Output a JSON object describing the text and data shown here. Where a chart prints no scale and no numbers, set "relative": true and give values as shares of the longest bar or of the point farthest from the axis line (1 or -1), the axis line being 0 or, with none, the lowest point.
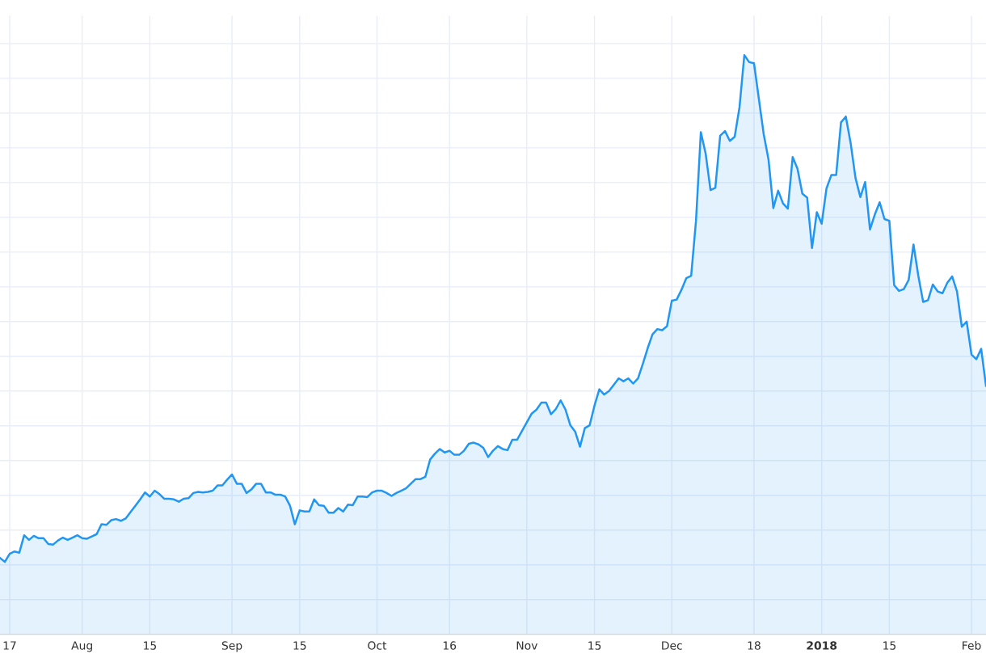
{
  "chart_data": {
    "type": "area",
    "relative": true,
    "grid": true,
    "tick_labels": "x",
    "xlim": [
      "2017-07-15",
      "2018-02-04"
    ],
    "xticks": [
      {
        "value": "2017-07-17",
        "label": "17"
      },
      {
        "value": "2017-08-01",
        "label": "Aug"
      },
      {
        "value": "2017-08-15",
        "label": "15"
      },
      {
        "value": "2017-09-01",
        "label": "Sep"
      },
      {
        "value": "2017-09-15",
        "label": "15"
      },
      {
        "value": "2017-10-01",
        "label": "Oct"
      },
      {
        "value": "2017-10-16",
        "label": "16"
      },
      {
        "value": "2017-11-01",
        "label": "Nov"
      },
      {
        "value": "2017-11-15",
        "label": "15"
      },
      {
        "value": "2017-12-01",
        "label": "Dec"
      },
      {
        "value": "2017-12-18",
        "label": "18"
      },
      {
        "value": "2018-01-01",
        "label": "2018"
      },
      {
        "value": "2018-01-15",
        "label": "15"
      },
      {
        "value": "2018-02-01",
        "label": "Feb"
      }
    ],
    "series": [
      {
        "color": "#2196f3",
        "x": [
          "2017-07-15",
          "2017-07-16",
          "2017-07-17",
          "2017-07-18",
          "2017-07-19",
          "2017-07-20",
          "2017-07-21",
          "2017-07-22",
          "2017-07-23",
          "2017-07-24",
          "2017-07-25",
          "2017-07-26",
          "2017-07-27",
          "2017-07-28",
          "2017-07-29",
          "2017-07-30",
          "2017-07-31",
          "2017-08-01",
          "2017-08-02",
          "2017-08-03",
          "2017-08-04",
          "2017-08-05",
          "2017-08-06",
          "2017-08-07",
          "2017-08-08",
          "2017-08-09",
          "2017-08-10",
          "2017-08-11",
          "2017-08-12",
          "2017-08-13",
          "2017-08-14",
          "2017-08-15",
          "2017-08-16",
          "2017-08-17",
          "2017-08-18",
          "2017-08-19",
          "2017-08-20",
          "2017-08-21",
          "2017-08-22",
          "2017-08-23",
          "2017-08-24",
          "2017-08-25",
          "2017-08-26",
          "2017-08-27",
          "2017-08-28",
          "2017-08-29",
          "2017-08-30",
          "2017-08-31",
          "2017-09-01",
          "2017-09-02",
          "2017-09-03",
          "2017-09-04",
          "2017-09-05",
          "2017-09-06",
          "2017-09-07",
          "2017-09-08",
          "2017-09-09",
          "2017-09-10",
          "2017-09-11",
          "2017-09-12",
          "2017-09-13",
          "2017-09-14",
          "2017-09-15",
          "2017-09-16",
          "2017-09-17",
          "2017-09-18",
          "2017-09-19",
          "2017-09-20",
          "2017-09-21",
          "2017-09-22",
          "2017-09-23",
          "2017-09-24",
          "2017-09-25",
          "2017-09-26",
          "2017-09-27",
          "2017-09-28",
          "2017-09-29",
          "2017-09-30",
          "2017-10-01",
          "2017-10-02",
          "2017-10-03",
          "2017-10-04",
          "2017-10-05",
          "2017-10-06",
          "2017-10-07",
          "2017-10-08",
          "2017-10-09",
          "2017-10-10",
          "2017-10-11",
          "2017-10-12",
          "2017-10-13",
          "2017-10-14",
          "2017-10-15",
          "2017-10-16",
          "2017-10-17",
          "2017-10-18",
          "2017-10-19",
          "2017-10-20",
          "2017-10-21",
          "2017-10-22",
          "2017-10-23",
          "2017-10-24",
          "2017-10-25",
          "2017-10-26",
          "2017-10-27",
          "2017-10-28",
          "2017-10-29",
          "2017-10-30",
          "2017-10-31",
          "2017-11-01",
          "2017-11-02",
          "2017-11-03",
          "2017-11-04",
          "2017-11-05",
          "2017-11-06",
          "2017-11-07",
          "2017-11-08",
          "2017-11-09",
          "2017-11-10",
          "2017-11-11",
          "2017-11-12",
          "2017-11-13",
          "2017-11-14",
          "2017-11-15",
          "2017-11-16",
          "2017-11-17",
          "2017-11-18",
          "2017-11-19",
          "2017-11-20",
          "2017-11-21",
          "2017-11-22",
          "2017-11-23",
          "2017-11-24",
          "2017-11-25",
          "2017-11-26",
          "2017-11-27",
          "2017-11-28",
          "2017-11-29",
          "2017-11-30",
          "2017-12-01",
          "2017-12-02",
          "2017-12-03",
          "2017-12-04",
          "2017-12-05",
          "2017-12-06",
          "2017-12-07",
          "2017-12-08",
          "2017-12-09",
          "2017-12-10",
          "2017-12-11",
          "2017-12-12",
          "2017-12-13",
          "2017-12-14",
          "2017-12-15",
          "2017-12-16",
          "2017-12-17",
          "2017-12-18",
          "2017-12-19",
          "2017-12-20",
          "2017-12-21",
          "2017-12-22",
          "2017-12-23",
          "2017-12-24",
          "2017-12-25",
          "2017-12-26",
          "2017-12-27",
          "2017-12-28",
          "2017-12-29",
          "2017-12-30",
          "2017-12-31",
          "2018-01-01",
          "2018-01-02",
          "2018-01-03",
          "2018-01-04",
          "2018-01-05",
          "2018-01-06",
          "2018-01-07",
          "2018-01-08",
          "2018-01-09",
          "2018-01-10",
          "2018-01-11",
          "2018-01-12",
          "2018-01-13",
          "2018-01-14",
          "2018-01-15",
          "2018-01-16",
          "2018-01-17",
          "2018-01-18",
          "2018-01-19",
          "2018-01-20",
          "2018-01-21",
          "2018-01-22",
          "2018-01-23",
          "2018-01-24",
          "2018-01-25",
          "2018-01-26",
          "2018-01-27",
          "2018-01-28",
          "2018-01-29",
          "2018-01-30",
          "2018-01-31",
          "2018-02-01",
          "2018-02-02",
          "2018-02-03",
          "2018-02-04"
        ],
        "values": [
          0.132,
          0.125,
          0.139,
          0.143,
          0.141,
          0.171,
          0.163,
          0.17,
          0.166,
          0.166,
          0.156,
          0.155,
          0.162,
          0.167,
          0.163,
          0.167,
          0.171,
          0.166,
          0.165,
          0.169,
          0.173,
          0.19,
          0.189,
          0.197,
          0.199,
          0.196,
          0.2,
          0.211,
          0.222,
          0.233,
          0.245,
          0.238,
          0.248,
          0.242,
          0.234,
          0.234,
          0.233,
          0.229,
          0.234,
          0.235,
          0.244,
          0.246,
          0.245,
          0.246,
          0.248,
          0.257,
          0.257,
          0.267,
          0.276,
          0.26,
          0.26,
          0.244,
          0.25,
          0.26,
          0.26,
          0.245,
          0.245,
          0.241,
          0.241,
          0.238,
          0.222,
          0.19,
          0.214,
          0.212,
          0.212,
          0.233,
          0.223,
          0.222,
          0.21,
          0.21,
          0.218,
          0.212,
          0.224,
          0.223,
          0.238,
          0.238,
          0.237,
          0.245,
          0.248,
          0.248,
          0.244,
          0.239,
          0.244,
          0.248,
          0.252,
          0.26,
          0.268,
          0.268,
          0.272,
          0.302,
          0.312,
          0.32,
          0.314,
          0.317,
          0.31,
          0.31,
          0.317,
          0.329,
          0.331,
          0.328,
          0.322,
          0.306,
          0.317,
          0.325,
          0.32,
          0.318,
          0.336,
          0.336,
          0.351,
          0.366,
          0.381,
          0.388,
          0.4,
          0.4,
          0.38,
          0.389,
          0.404,
          0.388,
          0.361,
          0.35,
          0.324,
          0.356,
          0.361,
          0.395,
          0.423,
          0.414,
          0.42,
          0.431,
          0.442,
          0.437,
          0.442,
          0.433,
          0.442,
          0.467,
          0.494,
          0.518,
          0.527,
          0.525,
          0.532,
          0.576,
          0.578,
          0.595,
          0.615,
          0.619,
          0.714,
          0.867,
          0.83,
          0.767,
          0.771,
          0.861,
          0.869,
          0.852,
          0.859,
          0.91,
          1,
          0.988,
          0.986,
          0.925,
          0.864,
          0.82,
          0.736,
          0.766,
          0.744,
          0.735,
          0.824,
          0.804,
          0.761,
          0.754,
          0.667,
          0.729,
          0.709,
          0.77,
          0.793,
          0.793,
          0.884,
          0.894,
          0.848,
          0.788,
          0.755,
          0.781,
          0.699,
          0.725,
          0.746,
          0.717,
          0.714,
          0.603,
          0.593,
          0.596,
          0.612,
          0.673,
          0.619,
          0.574,
          0.577,
          0.604,
          0.592,
          0.589,
          0.607,
          0.618,
          0.592,
          0.531,
          0.54,
          0.483,
          0.475,
          0.493,
          0.429
        ]
      }
    ]
  }
}
